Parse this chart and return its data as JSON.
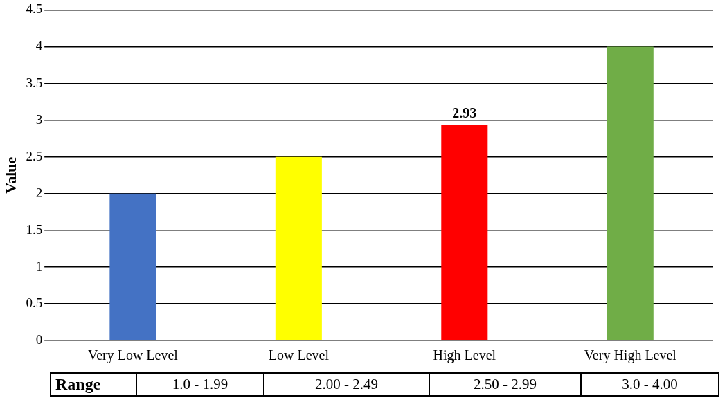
{
  "chart_data": {
    "type": "bar",
    "ylabel": "Value",
    "categories": [
      "Very Low Level",
      "Low Level",
      "High Level",
      "Very High Level"
    ],
    "values": [
      2,
      2.5,
      2.93,
      4
    ],
    "colors": [
      "#4472c4",
      "#ffff00",
      "#ff0000",
      "#70ad47"
    ],
    "value_labels": [
      null,
      null,
      "2.93",
      null
    ],
    "ylim": [
      0,
      4.5
    ],
    "yticks": [
      0,
      0.5,
      1,
      1.5,
      2,
      2.5,
      3,
      3.5,
      4,
      4.5
    ],
    "grid": "y",
    "legend": false,
    "annotations": [
      "Range",
      "1.0 - 1.99",
      "2.00 - 2.49",
      "2.50 - 2.99",
      "3.0 - 4.00"
    ]
  }
}
